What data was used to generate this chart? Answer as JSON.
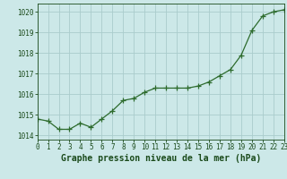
{
  "x": [
    0,
    1,
    2,
    3,
    4,
    5,
    6,
    7,
    8,
    9,
    10,
    11,
    12,
    13,
    14,
    15,
    16,
    17,
    18,
    19,
    20,
    21,
    22,
    23
  ],
  "y": [
    1014.8,
    1014.7,
    1014.3,
    1014.3,
    1014.6,
    1014.4,
    1014.8,
    1015.2,
    1015.7,
    1015.8,
    1016.1,
    1016.3,
    1016.3,
    1016.3,
    1016.3,
    1016.4,
    1016.6,
    1016.9,
    1017.2,
    1017.9,
    1019.1,
    1019.8,
    1020.0,
    1020.1
  ],
  "xlim": [
    0,
    23
  ],
  "ylim": [
    1013.8,
    1020.4
  ],
  "yticks": [
    1014,
    1015,
    1016,
    1017,
    1018,
    1019,
    1020
  ],
  "xticks": [
    0,
    1,
    2,
    3,
    4,
    5,
    6,
    7,
    8,
    9,
    10,
    11,
    12,
    13,
    14,
    15,
    16,
    17,
    18,
    19,
    20,
    21,
    22,
    23
  ],
  "xlabel": "Graphe pression niveau de la mer (hPa)",
  "line_color": "#2d6b2d",
  "marker_color": "#2d6b2d",
  "bg_plot": "#cce8e8",
  "bg_fig": "#cce8e8",
  "grid_color": "#aacccc",
  "axis_label_color": "#1a4a1a",
  "tick_color": "#1a4a1a",
  "xlabel_fontsize": 7.0,
  "tick_fontsize": 5.5,
  "line_width": 0.9,
  "marker_size": 2.5
}
